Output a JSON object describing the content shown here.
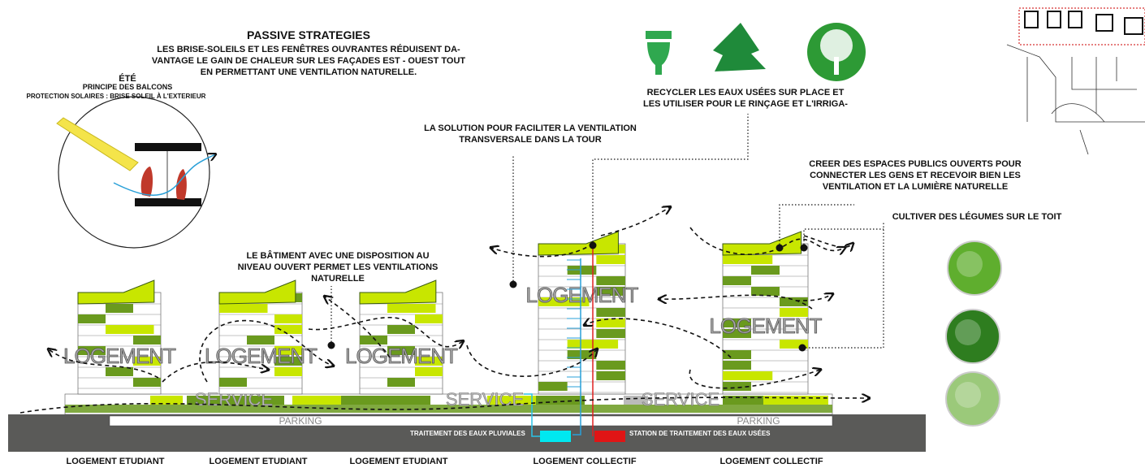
{
  "passive": {
    "title": "PASSIVE STRATEGIES",
    "lines": [
      "LES BRISE-SOLEILS ET LES FENÊTRES OUVRANTES RÉDUISENT DA-",
      "VANTAGE LE GAIN DE CHALEUR SUR LES FAÇADES EST - OUEST  TOUT",
      "EN PERMETTANT UNE VENTILATION NATURELLE."
    ]
  },
  "summer": {
    "title": "ÉTÉ",
    "subtitle": "PRINCIPE DES BALCONS",
    "caption": "PROTECTION SOLAIRES : BRISE SOLEIL À L'EXTERIEUR"
  },
  "recycle": {
    "lines": [
      "RECYCLER LES EAUX USÉES SUR PLACE ET",
      "LES UTILISER POUR LE RINÇAGE ET L'IRRIGA-"
    ]
  },
  "ventilation_tower": {
    "lines": [
      "LA SOLUTION POUR FACILITER LA VENTILATION",
      "TRANSVERSALE DANS LA TOUR"
    ]
  },
  "public_spaces": {
    "lines": [
      "CREER DES ESPACES PUBLICS OUVERTS POUR",
      "CONNECTER LES GENS ET RECEVOIR BIEN LES",
      "VENTILATION ET LA LUMIÈRE NATURELLE"
    ]
  },
  "roof_garden": {
    "text": "CULTIVER DES LÉGUMES SUR LE TOIT"
  },
  "open_level": {
    "lines": [
      "LE BÂTIMENT AVEC UNE DISPOSITION AU",
      "NIVEAU OUVERT PERMET LES VENTILATIONS",
      "NATURELLE"
    ]
  },
  "buildings": [
    {
      "label": "LOGEMENT",
      "type": "LOGEMENT ETUDIANT"
    },
    {
      "label": "LOGEMENT",
      "type": "LOGEMENT ETUDIANT"
    },
    {
      "label": "LOGEMENT",
      "type": "LOGEMENT ETUDIANT"
    },
    {
      "label": "LOGEMENT",
      "type": "LOGEMENT COLLECTIF"
    },
    {
      "label": "LOGEMENT",
      "type": "LOGEMENT COLLECTIF"
    }
  ],
  "podium": {
    "service": [
      "SERVICE",
      "SERVICE",
      "SERVICE"
    ],
    "parking": [
      "PARKING",
      "PARKING"
    ]
  },
  "water": {
    "rain": "TRAITEMENT DES EAUX PLUVIALES",
    "waste": "STATION DE TRAITEMENT DES EAUX USÉES"
  }
}
